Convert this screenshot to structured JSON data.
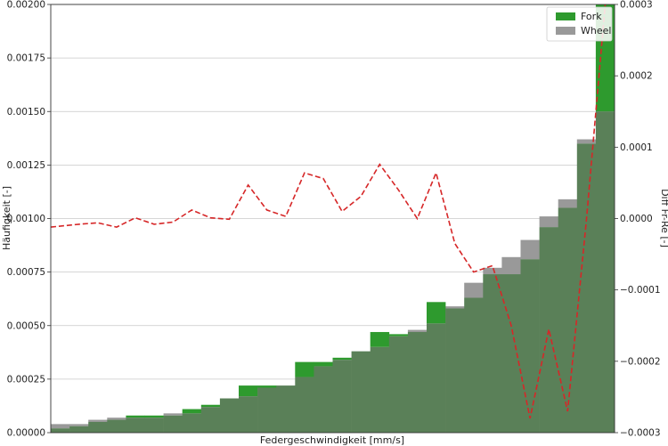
{
  "chart_data": {
    "type": "bar",
    "xlabel": "Federgeschwindigkeit [mm/s]",
    "ylabel": "Häufigkeit [-]",
    "y2label": "Diff Fr-Re [-]",
    "ylim": [
      0,
      0.002
    ],
    "y2lim": [
      -0.0003,
      0.0003
    ],
    "yticks": [
      "0.00000",
      "0.00025",
      "0.00050",
      "0.00075",
      "0.00100",
      "0.00125",
      "0.00150",
      "0.00175",
      "0.00200"
    ],
    "y2ticks": [
      "−0.0003",
      "−0.0002",
      "−0.0001",
      "0.0000",
      "0.0001",
      "0.0002",
      "0.0003"
    ],
    "grid": true,
    "legend_position": "top-right",
    "colors": {
      "fork": "#2e9a2e",
      "wheel": "#999999",
      "overlap": "#5a8058",
      "diff": "#d62728"
    },
    "series": [
      {
        "name": "Fork",
        "values": [
          2e-05,
          3e-05,
          5e-05,
          6e-05,
          8e-05,
          8e-05,
          8e-05,
          0.00011,
          0.00013,
          0.00016,
          0.00022,
          0.00022,
          0.00022,
          0.00033,
          0.00033,
          0.00035,
          0.00038,
          0.00047,
          0.00046,
          0.00047,
          0.00061,
          0.00058,
          0.00063,
          0.00074,
          0.00074,
          0.00081,
          0.00096,
          0.00105,
          0.00135,
          0.002
        ]
      },
      {
        "name": "Wheel",
        "values": [
          4e-05,
          4e-05,
          6e-05,
          7e-05,
          7e-05,
          7e-05,
          9e-05,
          9e-05,
          0.00012,
          0.00016,
          0.00017,
          0.00021,
          0.00022,
          0.00026,
          0.00031,
          0.00034,
          0.00038,
          0.0004,
          0.00045,
          0.00048,
          0.00051,
          0.00059,
          0.0007,
          0.00077,
          0.00082,
          0.0009,
          0.00101,
          0.00109,
          0.00137,
          0.0015
        ]
      },
      {
        "name": "Diff Fr-Re",
        "values": [
          -1.2e-05,
          -8e-06,
          -6e-06,
          -1.2e-05,
          1e-06,
          -8e-06,
          -5e-06,
          1.2e-05,
          1e-06,
          -1e-06,
          4.7e-05,
          1.2e-05,
          3e-06,
          6.4e-05,
          5.6e-05,
          1e-05,
          3.1e-05,
          7.6e-05,
          4e-05,
          0.0,
          6.4e-05,
          -3.5e-05,
          -7.5e-05,
          -6.6e-05,
          -0.00015,
          -0.00028,
          -0.000155,
          -0.00027,
          -2e-06,
          0.0003
        ]
      }
    ]
  }
}
